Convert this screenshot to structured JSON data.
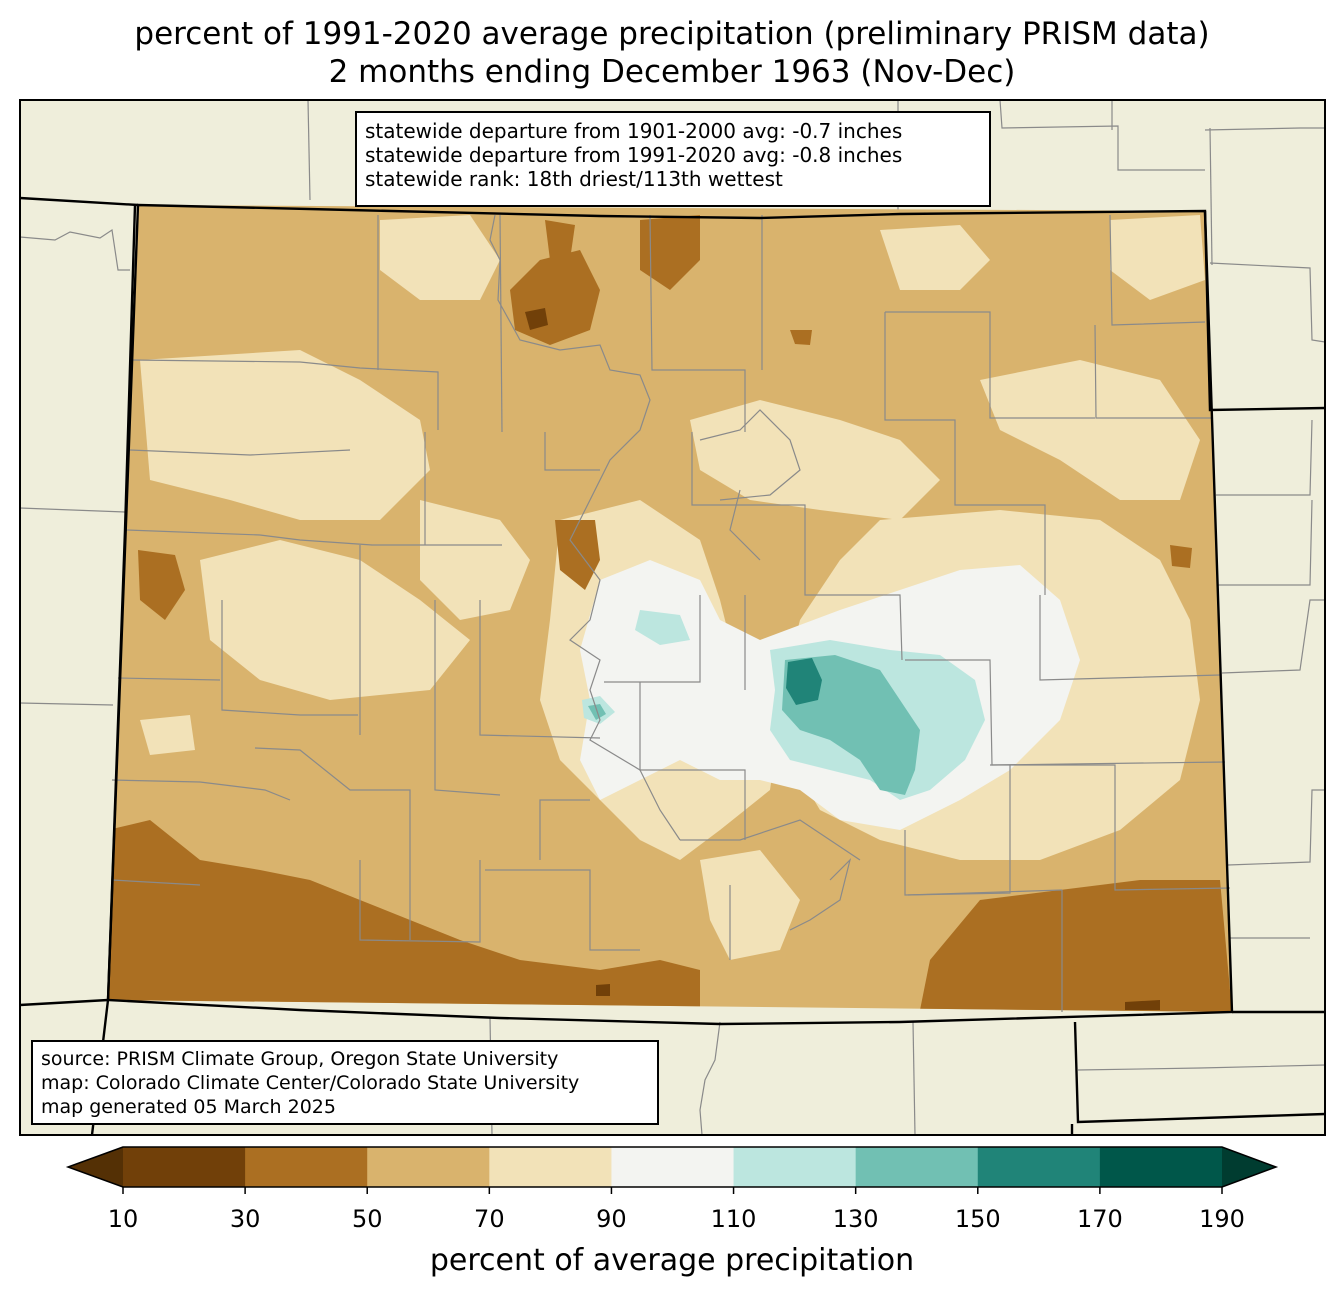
{
  "title": {
    "line1": "percent of 1991-2020 average precipitation (preliminary PRISM data)",
    "line2": "2 months ending December 1963 (Nov-Dec)"
  },
  "stats": {
    "line1": "statewide departure from 1901-2000 avg: -0.7 inches",
    "line2": "statewide departure from 1991-2020 avg: -0.8 inches",
    "line3": "statewide rank: 18th driest/113th wettest"
  },
  "source": {
    "line1": "source: PRISM Climate Group, Oregon State University",
    "line2": "map: Colorado Climate Center/Colorado State University",
    "line3": "map generated 05 March 2025"
  },
  "colorbar": {
    "label": "percent of average precipitation",
    "ticks": [
      "10",
      "30",
      "50",
      "70",
      "90",
      "110",
      "130",
      "150",
      "170",
      "190"
    ],
    "bins": [
      {
        "range": "<10",
        "color": "#543005"
      },
      {
        "range": "10-30",
        "color": "#714009"
      },
      {
        "range": "30-50",
        "color": "#ab6f22"
      },
      {
        "range": "50-70",
        "color": "#d9b36d"
      },
      {
        "range": "70-90",
        "color": "#f2e2b8"
      },
      {
        "range": "90-110",
        "color": "#f3f4f1"
      },
      {
        "range": "110-130",
        "color": "#bce6df"
      },
      {
        "range": "130-150",
        "color": "#71c0b3"
      },
      {
        "range": "150-170",
        "color": "#208478"
      },
      {
        "range": "170-190",
        "color": "#00574a"
      },
      {
        "range": ">190",
        "color": "#003c30"
      }
    ]
  },
  "colors": {
    "land_outside": "#efeedb",
    "county_lines": "#8a8a8a",
    "state_lines": "#000000"
  }
}
